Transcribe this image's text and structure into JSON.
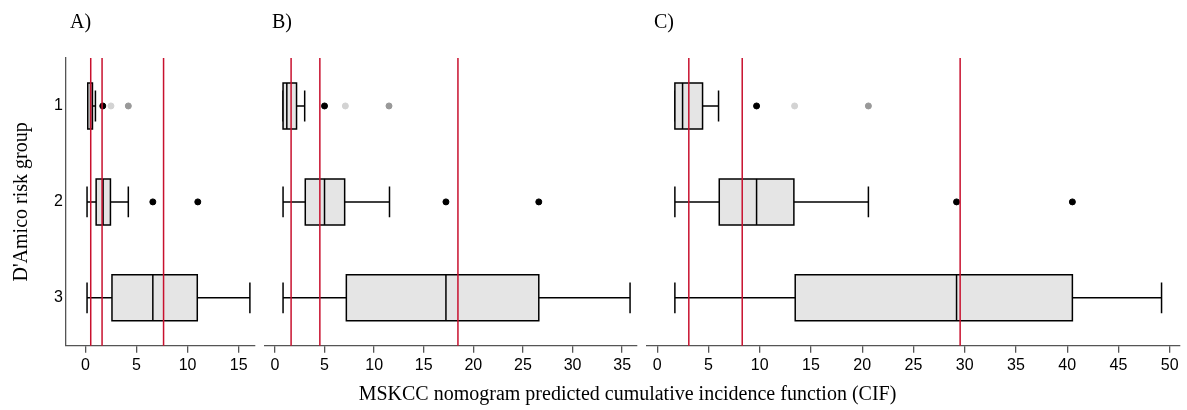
{
  "chart_data": [
    {
      "type": "box",
      "orientation": "horizontal",
      "title": "A)",
      "ylabel": "D'Amico risk group",
      "categories": [
        "1",
        "2",
        "3"
      ],
      "color": "#e5e5e5",
      "xlim": [
        -1.9,
        16.6
      ],
      "xticks": [
        0,
        5,
        10,
        15
      ],
      "grid": false,
      "legend": false,
      "boxes": [
        {
          "low": 0.23,
          "q1": 0.23,
          "median": 0.5,
          "q3": 0.69,
          "high": 0.98,
          "outliers": [
            1.7
          ]
        },
        {
          "low": 0.16,
          "q1": 1.05,
          "median": 1.73,
          "q3": 2.45,
          "high": 4.2,
          "outliers": [
            6.6,
            11.0
          ]
        },
        {
          "low": 0.16,
          "q1": 2.6,
          "median": 6.6,
          "q3": 10.95,
          "high": 16.1
        }
      ],
      "series": [
        {
          "type": "scatter",
          "color": "#d3d3d3",
          "x": [
            "1"
          ],
          "values": [
            2.5
          ]
        },
        {
          "type": "scatter",
          "color": "#999999",
          "x": [
            "1"
          ],
          "values": [
            4.2
          ]
        }
      ],
      "ref_lines": [
        {
          "axis": "x",
          "value": 0.52,
          "color": "#c8102e"
        },
        {
          "axis": "x",
          "value": 1.63,
          "color": "#c8102e"
        },
        {
          "axis": "x",
          "value": 7.65,
          "color": "#c8102e"
        }
      ]
    },
    {
      "type": "box",
      "orientation": "horizontal",
      "title": "B)",
      "xlabel": "MSKCC nomogram predicted cumulative incidence function (CIF)",
      "categories": [
        "1",
        "2",
        "3"
      ],
      "color": "#e5e5e5",
      "xlim": [
        -1,
        36.5
      ],
      "xticks": [
        0,
        5,
        10,
        15,
        20,
        25,
        30,
        35
      ],
      "grid": false,
      "legend": false,
      "tick_labels": "x",
      "boxes": [
        {
          "low": 0.82,
          "q1": 0.82,
          "median": 1.2,
          "q3": 2.18,
          "high": 3.0,
          "outliers": [
            5.0
          ]
        },
        {
          "low": 0.82,
          "q1": 3.06,
          "median": 5.0,
          "q3": 7.03,
          "high": 11.55,
          "outliers": [
            17.24,
            26.6
          ]
        },
        {
          "low": 0.82,
          "q1": 7.2,
          "median": 17.24,
          "q3": 26.6,
          "high": 35.8
        }
      ],
      "series": [
        {
          "type": "scatter",
          "color": "#d3d3d3",
          "x": [
            "1"
          ],
          "values": [
            7.1
          ]
        },
        {
          "type": "scatter",
          "color": "#999999",
          "x": [
            "1"
          ],
          "values": [
            11.5
          ]
        }
      ],
      "ref_lines": [
        {
          "axis": "x",
          "value": 1.63,
          "color": "#c8102e"
        },
        {
          "axis": "x",
          "value": 4.53,
          "color": "#c8102e"
        },
        {
          "axis": "x",
          "value": 18.45,
          "color": "#c8102e"
        }
      ]
    },
    {
      "type": "box",
      "orientation": "horizontal",
      "title": "C)",
      "categories": [
        "1",
        "2",
        "3"
      ],
      "color": "#e5e5e5",
      "xlim": [
        -1,
        51
      ],
      "xticks": [
        0,
        5,
        10,
        15,
        20,
        25,
        30,
        35,
        40,
        45,
        50
      ],
      "grid": false,
      "legend": false,
      "tick_labels": "x",
      "boxes": [
        {
          "low": 1.72,
          "q1": 1.72,
          "median": 2.47,
          "q3": 4.42,
          "high": 5.98,
          "outliers": [
            9.69
          ]
        },
        {
          "low": 1.72,
          "q1": 6.05,
          "median": 9.69,
          "q3": 13.33,
          "high": 20.6,
          "outliers": [
            29.2,
            40.5
          ]
        },
        {
          "low": 1.72,
          "q1": 13.46,
          "median": 29.2,
          "q3": 40.5,
          "high": 49.2
        }
      ],
      "series": [
        {
          "type": "scatter",
          "color": "#d3d3d3",
          "x": [
            "1"
          ],
          "values": [
            13.4
          ]
        },
        {
          "type": "scatter",
          "color": "#999999",
          "x": [
            "1"
          ],
          "values": [
            20.6
          ]
        }
      ],
      "ref_lines": [
        {
          "axis": "x",
          "value": 3.08,
          "color": "#c8102e"
        },
        {
          "axis": "x",
          "value": 8.29,
          "color": "#c8102e"
        },
        {
          "axis": "x",
          "value": 29.55,
          "color": "#c8102e"
        }
      ]
    }
  ]
}
